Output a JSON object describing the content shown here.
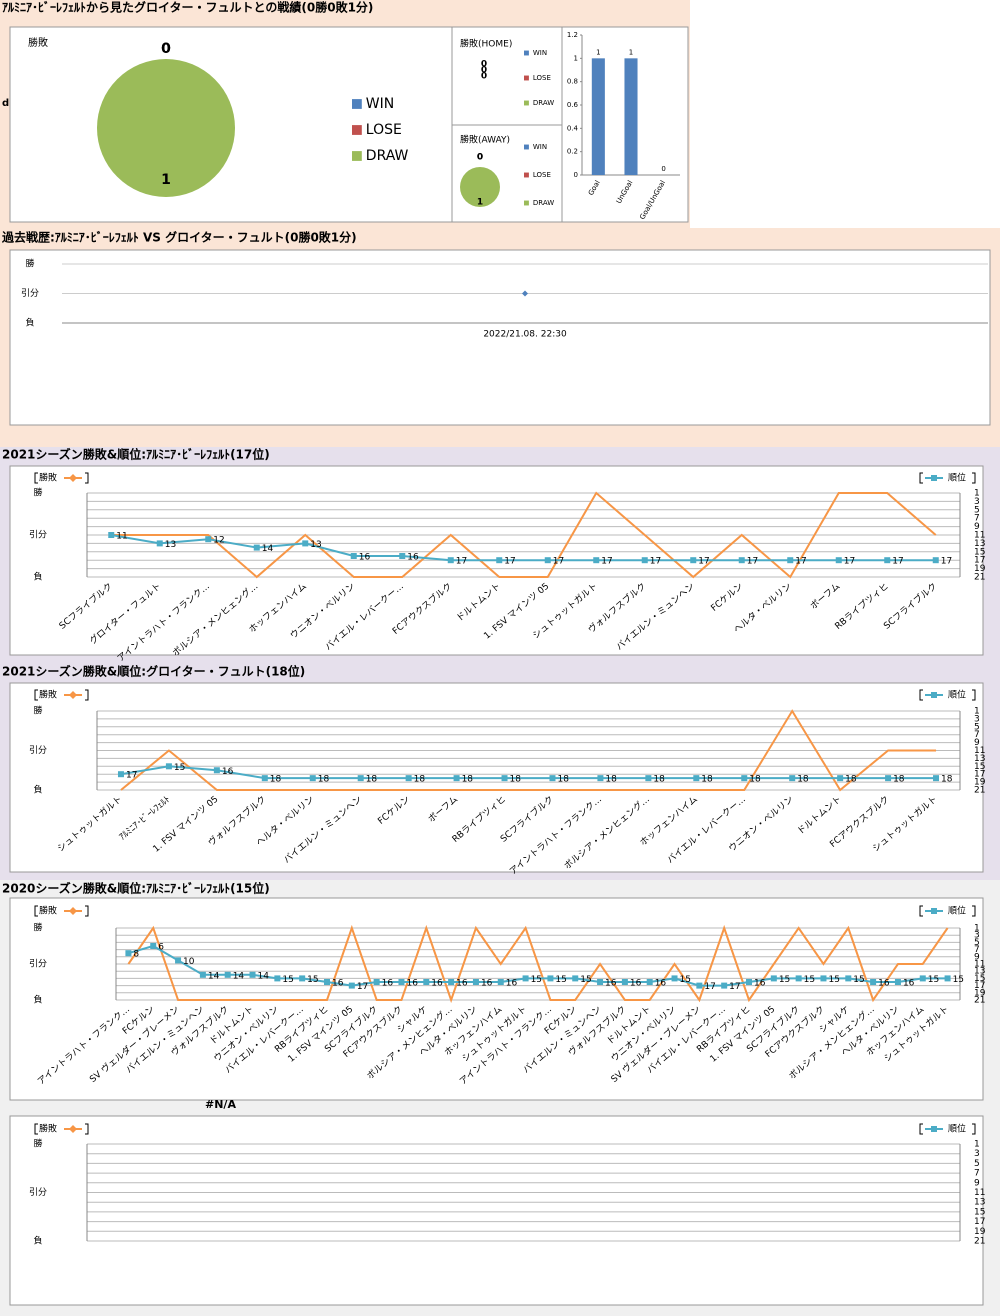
{
  "sections": [
    "ｱﾙﾐﾆｱ･ﾋﾞｰﾚﾌｪﾙﾄから見たグロイター・フュルトとの戦績(0勝0敗1分)",
    "過去戦歴:ｱﾙﾐﾆｱ･ﾋﾞｰﾚﾌｪﾙﾄ VS グロイター・フュルト(0勝0敗1分)",
    "2021シーズン勝敗&順位:ｱﾙﾐﾆｱ･ﾋﾞｰﾚﾌｪﾙﾄ(17位)",
    "2021シーズン勝敗&順位:グロイター・フュルト(18位)",
    "2020シーズン勝敗&順位:ｱﾙﾐﾆｱ･ﾋﾞｰﾚﾌｪﾙﾄ(15位)"
  ],
  "side_label": "d",
  "chart_data": [
    {
      "type": "pie",
      "title": "勝敗",
      "categories": [
        "WIN",
        "LOSE",
        "DRAW"
      ],
      "values": [
        0,
        0,
        1
      ],
      "colors": [
        "#4f81bd",
        "#c0504d",
        "#9bbb59"
      ]
    },
    {
      "type": "pie",
      "title": "勝敗(HOME)",
      "categories": [
        "WIN",
        "LOSE",
        "DRAW"
      ],
      "values": [
        0,
        0,
        0
      ],
      "colors": [
        "#4f81bd",
        "#c0504d",
        "#9bbb59"
      ]
    },
    {
      "type": "pie",
      "title": "勝敗(AWAY)",
      "categories": [
        "WIN",
        "LOSE",
        "DRAW"
      ],
      "values": [
        0,
        0,
        1
      ],
      "colors": [
        "#4f81bd",
        "#c0504d",
        "#9bbb59"
      ]
    },
    {
      "type": "bar",
      "categories": [
        "Goal",
        "UnGoal",
        "Goal/UnGoal"
      ],
      "values": [
        1,
        1,
        0
      ],
      "color": "#4f81bd",
      "ylim": [
        0,
        1.2
      ],
      "yticks": [
        0,
        0.2,
        0.4,
        0.6,
        0.8,
        1,
        1.2
      ]
    },
    {
      "type": "line",
      "categories": [
        "2022/21.08. 22:30"
      ],
      "ycategories": [
        "勝",
        "引分",
        "負"
      ],
      "series": [
        {
          "color": "#4f81bd",
          "marker": "diamond",
          "values": [
            "引分"
          ]
        }
      ]
    },
    {
      "type": "line",
      "categories": [
        "SCフライブルク",
        "グロイター・フュルト",
        "アイントラハト・フランク…",
        "ボルシア・メンヒェング…",
        "ホッフェンハイム",
        "ウニオン・ベルリン",
        "バイエル・レバークー…",
        "FCアウクスブルク",
        "ドルトムント",
        "1. FSV マインツ 05",
        "シュトゥットガルト",
        "ヴォルフスブルク",
        "バイエルン・ミュンヘン",
        "FCケルン",
        "ヘルタ・ベルリン",
        "ボーフム",
        "RBライプツィヒ",
        "SCフライブルク"
      ],
      "ycategories": [
        "勝",
        "引分",
        "負"
      ],
      "y2lim": [
        21,
        1
      ],
      "y2ticks": [
        1,
        3,
        5,
        7,
        9,
        11,
        13,
        15,
        17,
        19,
        21
      ],
      "series": [
        {
          "name": "勝敗",
          "color": "#f79646",
          "values": [
            "引分",
            "引分",
            "引分",
            "負",
            "引分",
            "負",
            "負",
            "引分",
            "負",
            "負",
            "勝",
            "引分",
            "負",
            "引分",
            "負",
            "勝",
            "勝",
            "引分"
          ]
        },
        {
          "name": "順位",
          "color": "#4bacc6",
          "axis": "y2",
          "marker": "square",
          "values": [
            11,
            13,
            12,
            14,
            13,
            16,
            16,
            17,
            17,
            17,
            17,
            17,
            17,
            17,
            17,
            17,
            17,
            17
          ]
        }
      ]
    },
    {
      "type": "line",
      "categories": [
        "シュトゥットガルト",
        "ｱﾙﾐﾆｱ･ﾋﾞｰﾚﾌｪﾙﾄ",
        "1. FSV マインツ 05",
        "ヴォルフスブルク",
        "ヘルタ・ベルリン",
        "バイエルン・ミュンヘン",
        "FCケルン",
        "ボーフム",
        "RBライプツィヒ",
        "SCフライブルク",
        "アイントラハト・フランク…",
        "ボルシア・メンヒェング…",
        "ホッフェンハイム",
        "バイエル・レバークー…",
        "ウニオン・ベルリン",
        "ドルトムント",
        "FCアウクスブルク",
        "シュトゥットガルト"
      ],
      "ycategories": [
        "勝",
        "引分",
        "負"
      ],
      "y2lim": [
        21,
        1
      ],
      "y2ticks": [
        1,
        3,
        5,
        7,
        9,
        11,
        13,
        15,
        17,
        19,
        21
      ],
      "series": [
        {
          "name": "勝敗",
          "color": "#f79646",
          "values": [
            "負",
            "引分",
            "負",
            "負",
            "負",
            "負",
            "負",
            "負",
            "負",
            "負",
            "負",
            "負",
            "負",
            "負",
            "勝",
            "負",
            "引分",
            "引分"
          ]
        },
        {
          "name": "順位",
          "color": "#4bacc6",
          "axis": "y2",
          "marker": "square",
          "values": [
            17,
            15,
            16,
            18,
            18,
            18,
            18,
            18,
            18,
            18,
            18,
            18,
            18,
            18,
            18,
            18,
            18,
            18
          ]
        }
      ]
    },
    {
      "type": "line",
      "categories": [
        "アイントラハト・フランク…",
        "FCケルン",
        "SV ヴェルダー・ブレーメン",
        "バイエルン・ミュンヘン",
        "ヴォルフスブルク",
        "ドルトムント",
        "ウニオン・ベルリン",
        "バイエル・レバークー…",
        "RBライプツィヒ",
        "1. FSV マインツ 05",
        "SCフライブルク",
        "FCアウクスブルク",
        "シャルケ",
        "ボルシア・メンヒェング…",
        "ヘルタ・ベルリン",
        "ホッフェンハイム",
        "シュトゥットガルト",
        "アイントラハト・フランク…",
        "FCケルン",
        "バイエルン・ミュンヘン",
        "ヴォルフスブルク",
        "ドルトムント",
        "ウニオン・ベルリン",
        "SV ヴェルダー・ブレーメン",
        "バイエル・レバークー…",
        "RBライプツィヒ",
        "1. FSV マインツ 05",
        "SCフライブルク",
        "FCアウクスブルク",
        "シャルケ",
        "ボルシア・メンヒェング…",
        "ヘルタ・ベルリン",
        "ホッフェンハイム",
        "シュトゥットガルト"
      ],
      "ycategories": [
        "勝",
        "引分",
        "負"
      ],
      "y2lim": [
        21,
        1
      ],
      "y2ticks": [
        1,
        3,
        5,
        7,
        9,
        11,
        13,
        15,
        17,
        19,
        21
      ],
      "series": [
        {
          "name": "勝敗",
          "color": "#f79646",
          "values": [
            "引分",
            "勝",
            "負",
            "負",
            "負",
            "負",
            "負",
            "負",
            "負",
            "勝",
            "負",
            "負",
            "勝",
            "負",
            "勝",
            "引分",
            "勝",
            "負",
            "負",
            "引分",
            "負",
            "負",
            "引分",
            "負",
            "勝",
            "負",
            "引分",
            "勝",
            "引分",
            "勝",
            "負",
            "引分",
            "引分",
            "勝"
          ]
        },
        {
          "name": "順位",
          "color": "#4bacc6",
          "axis": "y2",
          "marker": "square",
          "values": [
            8,
            6,
            10,
            14,
            14,
            14,
            15,
            15,
            16,
            17,
            16,
            16,
            16,
            16,
            16,
            16,
            15,
            15,
            15,
            16,
            16,
            16,
            15,
            17,
            17,
            16,
            15,
            15,
            15,
            15,
            16,
            16,
            15,
            15
          ]
        }
      ]
    },
    {
      "type": "line",
      "title": "#N/A",
      "categories": [],
      "ycategories": [
        "勝",
        "引分",
        "負"
      ],
      "y2lim": [
        21,
        1
      ],
      "y2ticks": [
        1,
        3,
        5,
        7,
        9,
        11,
        13,
        15,
        17,
        19,
        21
      ],
      "series": [
        {
          "name": "勝敗",
          "color": "#f79646",
          "values": []
        },
        {
          "name": "順位",
          "color": "#4bacc6",
          "axis": "y2",
          "marker": "square",
          "values": []
        }
      ]
    }
  ]
}
